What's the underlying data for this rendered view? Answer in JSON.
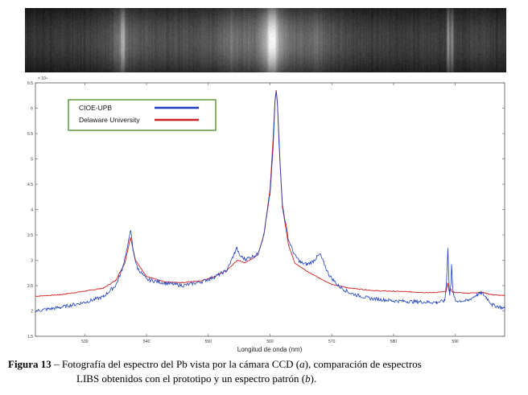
{
  "chart_data": {
    "type": "line",
    "xlabel": "Longitud de onda (nm)",
    "ylabel": "",
    "y_exponent": "× 10⁴",
    "xlim": [
      522,
      598
    ],
    "ylim": [
      1.5,
      6.5
    ],
    "x_ticks": [
      "530",
      "540",
      "550",
      "560",
      "570",
      "580",
      "590"
    ],
    "y_ticks": [
      "1.5",
      "2",
      "2.5",
      "3",
      "3.5",
      "4",
      "4.5",
      "5",
      "5.5",
      "6",
      "6.5"
    ],
    "grid": false,
    "legend": "top-left",
    "series": [
      {
        "name": "CIOE-UPB",
        "color": "#1f3fbf",
        "points": [
          [
            522,
            2.0
          ],
          [
            526,
            2.07
          ],
          [
            530,
            2.17
          ],
          [
            533,
            2.28
          ],
          [
            535,
            2.5
          ],
          [
            536,
            2.8
          ],
          [
            537,
            3.3
          ],
          [
            537.4,
            3.62
          ],
          [
            537.8,
            3.2
          ],
          [
            538.5,
            2.85
          ],
          [
            540,
            2.62
          ],
          [
            543,
            2.55
          ],
          [
            546,
            2.5
          ],
          [
            549,
            2.58
          ],
          [
            551,
            2.67
          ],
          [
            553,
            2.8
          ],
          [
            554.3,
            3.15
          ],
          [
            554.6,
            3.25
          ],
          [
            555,
            3.1
          ],
          [
            556,
            3.02
          ],
          [
            558,
            3.12
          ],
          [
            559,
            3.5
          ],
          [
            560,
            4.3
          ],
          [
            560.5,
            5.2
          ],
          [
            560.8,
            6.1
          ],
          [
            561.0,
            6.33
          ],
          [
            561.2,
            6.1
          ],
          [
            561.5,
            5.2
          ],
          [
            562,
            4.1
          ],
          [
            563,
            3.4
          ],
          [
            564,
            3.1
          ],
          [
            565,
            2.95
          ],
          [
            566,
            2.92
          ],
          [
            567,
            2.98
          ],
          [
            567.5,
            3.05
          ],
          [
            568.1,
            3.12
          ],
          [
            568.7,
            2.95
          ],
          [
            569.5,
            2.72
          ],
          [
            571,
            2.5
          ],
          [
            573,
            2.35
          ],
          [
            576,
            2.25
          ],
          [
            580,
            2.2
          ],
          [
            584,
            2.18
          ],
          [
            587,
            2.17
          ],
          [
            588.3,
            2.2
          ],
          [
            588.6,
            2.6
          ],
          [
            588.8,
            3.25
          ],
          [
            589.0,
            2.5
          ],
          [
            589.1,
            2.3
          ],
          [
            589.3,
            2.55
          ],
          [
            589.4,
            2.95
          ],
          [
            589.6,
            2.4
          ],
          [
            590,
            2.2
          ],
          [
            592,
            2.2
          ],
          [
            593.5,
            2.32
          ],
          [
            594.3,
            2.35
          ],
          [
            595,
            2.27
          ],
          [
            596,
            2.12
          ],
          [
            598,
            2.05
          ]
        ]
      },
      {
        "name": "Delaware University",
        "color": "#cc2222",
        "points": [
          [
            522,
            2.29
          ],
          [
            526,
            2.32
          ],
          [
            530,
            2.39
          ],
          [
            533,
            2.45
          ],
          [
            535,
            2.6
          ],
          [
            536.5,
            2.95
          ],
          [
            537.4,
            3.45
          ],
          [
            538.2,
            3.0
          ],
          [
            540,
            2.68
          ],
          [
            543,
            2.57
          ],
          [
            546,
            2.56
          ],
          [
            549,
            2.6
          ],
          [
            551,
            2.68
          ],
          [
            553,
            2.8
          ],
          [
            554.7,
            3.0
          ],
          [
            556,
            2.95
          ],
          [
            558,
            3.1
          ],
          [
            559,
            3.5
          ],
          [
            560,
            4.4
          ],
          [
            560.5,
            5.4
          ],
          [
            560.8,
            6.15
          ],
          [
            561.0,
            6.35
          ],
          [
            561.2,
            6.1
          ],
          [
            561.6,
            5.0
          ],
          [
            562,
            4.05
          ],
          [
            563,
            3.3
          ],
          [
            564,
            2.95
          ],
          [
            566,
            2.78
          ],
          [
            568,
            2.65
          ],
          [
            570,
            2.52
          ],
          [
            573,
            2.45
          ],
          [
            577,
            2.4
          ],
          [
            582,
            2.38
          ],
          [
            586,
            2.36
          ],
          [
            588.5,
            2.38
          ],
          [
            588.8,
            2.55
          ],
          [
            589.0,
            2.4
          ],
          [
            589.3,
            2.42
          ],
          [
            589.6,
            2.37
          ],
          [
            592,
            2.35
          ],
          [
            594.3,
            2.37
          ],
          [
            596,
            2.32
          ],
          [
            598,
            2.3
          ]
        ]
      }
    ]
  },
  "caption": {
    "label": "Figura 13",
    "line1": " – Fotografía del espectro del Pb vista por la cámara CCD (",
    "a": "a",
    "line1b": "), comparación de espectros",
    "line2": "LIBS obtenidos con el prototipo y un espectro patrón (",
    "b": "b",
    "line2b": ")."
  }
}
